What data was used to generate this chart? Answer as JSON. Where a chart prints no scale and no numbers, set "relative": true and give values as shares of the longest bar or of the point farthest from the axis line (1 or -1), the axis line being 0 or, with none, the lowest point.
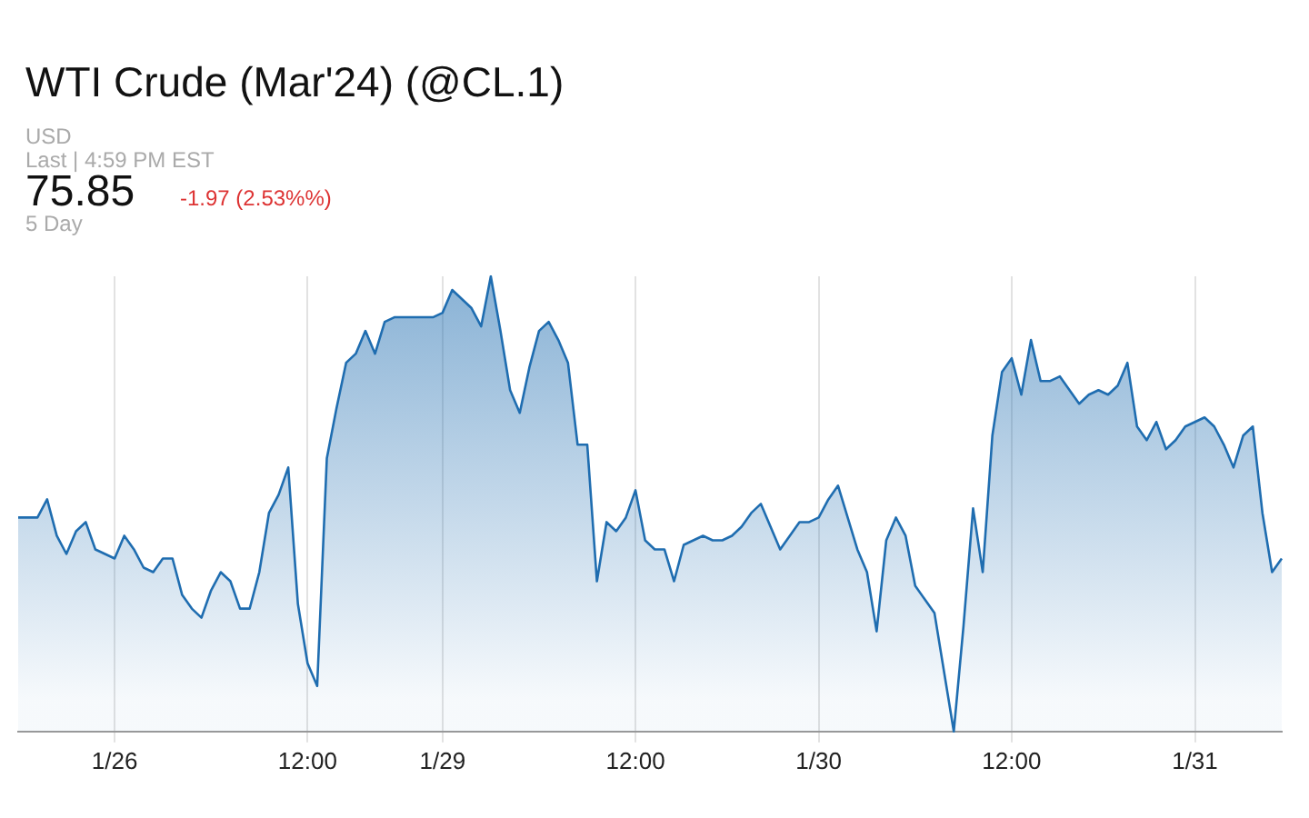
{
  "chart_data": {
    "type": "area",
    "title": "WTI Crude (Mar'24) (@CL.1)",
    "annotations": [
      "USD",
      "Last | 4:59 PM EST",
      "75.85",
      "-1.97 (2.53%%)",
      "5 Day"
    ],
    "relative": true,
    "grid": "x",
    "legend": false,
    "marker": "none",
    "categories": [
      null,
      null,
      null,
      null,
      null,
      null,
      null,
      null,
      null,
      null,
      "1/26",
      null,
      null,
      null,
      null,
      null,
      null,
      null,
      null,
      null,
      null,
      null,
      null,
      null,
      null,
      null,
      null,
      null,
      null,
      null,
      "12:00",
      null,
      null,
      null,
      null,
      null,
      null,
      null,
      null,
      null,
      null,
      null,
      null,
      null,
      "1/29",
      null,
      null,
      null,
      null,
      null,
      null,
      null,
      null,
      null,
      null,
      null,
      null,
      null,
      null,
      null,
      null,
      null,
      null,
      null,
      "12:00",
      null,
      null,
      null,
      null,
      null,
      null,
      null,
      null,
      null,
      null,
      null,
      null,
      null,
      null,
      null,
      null,
      null,
      null,
      "1/30",
      null,
      null,
      null,
      null,
      null,
      null,
      null,
      null,
      null,
      null,
      null,
      null,
      null,
      null,
      null,
      null,
      null,
      null,
      null,
      "12:00",
      null,
      null,
      null,
      null,
      null,
      null,
      null,
      null,
      null,
      null,
      null,
      null,
      null,
      null,
      null,
      null,
      null,
      null,
      "1/31",
      null,
      null,
      null,
      null,
      null,
      null,
      null,
      null,
      null
    ],
    "series": [
      {
        "color": "#1f6db0",
        "values": [
          0.47,
          0.47,
          0.47,
          0.51,
          0.43,
          0.39,
          0.44,
          0.46,
          0.4,
          0.39,
          0.38,
          0.43,
          0.4,
          0.36,
          0.35,
          0.38,
          0.38,
          0.3,
          0.27,
          0.25,
          0.31,
          0.35,
          0.33,
          0.27,
          0.27,
          0.35,
          0.48,
          0.52,
          0.58,
          0.28,
          0.15,
          0.1,
          0.6,
          0.71,
          0.81,
          0.83,
          0.88,
          0.83,
          0.9,
          0.91,
          0.91,
          0.91,
          0.91,
          0.91,
          0.92,
          0.97,
          0.95,
          0.93,
          0.89,
          1,
          0.88,
          0.75,
          0.7,
          0.8,
          0.88,
          0.9,
          0.86,
          0.81,
          0.63,
          0.63,
          0.33,
          0.46,
          0.44,
          0.47,
          0.53,
          0.42,
          0.4,
          0.4,
          0.33,
          0.41,
          0.42,
          0.43,
          0.42,
          0.42,
          0.43,
          0.45,
          0.48,
          0.5,
          0.45,
          0.4,
          0.43,
          0.46,
          0.46,
          0.47,
          0.51,
          0.54,
          0.47,
          0.4,
          0.35,
          0.22,
          0.42,
          0.47,
          0.43,
          0.32,
          0.29,
          0.26,
          0.13,
          0,
          0.23,
          0.49,
          0.35,
          0.65,
          0.79,
          0.82,
          0.74,
          0.86,
          0.77,
          0.77,
          0.78,
          0.75,
          0.72,
          0.74,
          0.75,
          0.74,
          0.76,
          0.81,
          0.67,
          0.64,
          0.68,
          0.62,
          0.64,
          0.67,
          0.68,
          0.69,
          0.67,
          0.63,
          0.58,
          0.65,
          0.67,
          0.48,
          0.35,
          0.38
        ]
      }
    ]
  }
}
